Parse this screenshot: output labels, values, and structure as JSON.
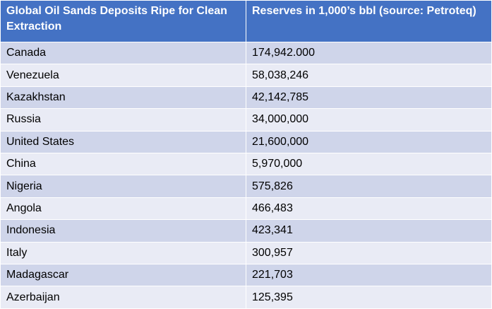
{
  "table": {
    "header": [
      "Global Oil Sands Deposits Ripe for Clean Extraction",
      "Reserves in 1,000’s bbl (source: Petroteq)"
    ],
    "rows": [
      [
        "Canada",
        "174,942.000"
      ],
      [
        "Venezuela",
        "58,038,246"
      ],
      [
        "Kazakhstan",
        "42,142,785"
      ],
      [
        "Russia",
        "34,000,000"
      ],
      [
        "United States",
        "21,600,000"
      ],
      [
        "China",
        "5,970,000"
      ],
      [
        "Nigeria",
        "575,826"
      ],
      [
        "Angola",
        "466,483"
      ],
      [
        "Indonesia",
        "423,341"
      ],
      [
        "Italy",
        "300,957"
      ],
      [
        "Madagascar",
        "221,703"
      ],
      [
        "Azerbaijan",
        "125,395"
      ]
    ]
  }
}
